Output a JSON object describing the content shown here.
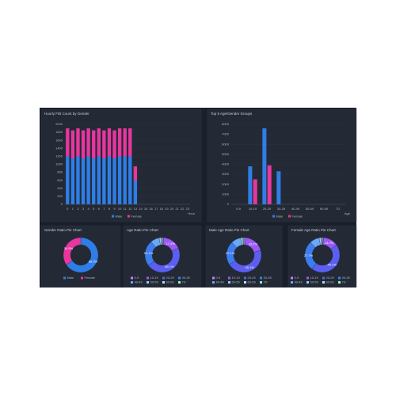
{
  "chart_data": [
    {
      "type": "bar",
      "stacked": true,
      "title": "Hourly F/B Count by Gender",
      "xlabel": "Hour",
      "categories": [
        "0",
        "1",
        "2",
        "3",
        "4",
        "5",
        "6",
        "7",
        "8",
        "9",
        "10",
        "11",
        "12",
        "13",
        "14",
        "15",
        "16",
        "17",
        "18",
        "19",
        "20",
        "21",
        "22",
        "23"
      ],
      "series": [
        {
          "name": "Male",
          "color": "#2f7ee8",
          "values": [
            1200,
            1150,
            1200,
            1150,
            1200,
            1150,
            1200,
            1150,
            1200,
            1150,
            1200,
            1200,
            1200,
            600,
            0,
            0,
            0,
            0,
            0,
            0,
            0,
            0,
            0,
            0
          ]
        },
        {
          "name": "Female",
          "color": "#e8369e",
          "values": [
            700,
            700,
            700,
            700,
            700,
            700,
            700,
            700,
            700,
            700,
            700,
            700,
            700,
            350,
            0,
            0,
            0,
            0,
            0,
            0,
            0,
            0,
            0,
            0
          ]
        }
      ],
      "ylim": [
        0,
        2000
      ],
      "yticks": [
        0,
        200,
        400,
        600,
        800,
        1000,
        1200,
        1400,
        1600,
        1800,
        2000
      ],
      "grid": true
    },
    {
      "type": "bar",
      "stacked": false,
      "title": "Top 5 Age/Gender Groups",
      "xlabel": "Age",
      "categories": [
        "0-9",
        "10-19",
        "20-29",
        "30-39",
        "40-49",
        "50-59",
        "60-69",
        "70-"
      ],
      "series": [
        {
          "name": "Male",
          "color": "#2f7ee8",
          "values": [
            null,
            3800,
            7600,
            3300,
            null,
            null,
            null,
            null
          ]
        },
        {
          "name": "Female",
          "color": "#e8369e",
          "values": [
            null,
            2500,
            3900,
            null,
            null,
            null,
            null,
            null
          ]
        }
      ],
      "ylim": [
        0,
        8000
      ],
      "yticks": [
        0,
        1000,
        2000,
        3000,
        4000,
        5000,
        6000,
        7000,
        8000
      ],
      "grid": true
    },
    {
      "type": "pie",
      "donut": true,
      "title": "Gender Ratio Pie Chart",
      "categories": [
        "Male",
        "Female"
      ],
      "values": [
        65.5,
        34.5
      ],
      "value_labels": [
        "65.5%",
        "34.5%"
      ],
      "colors": [
        "#2f7ee8",
        "#e8369e"
      ]
    },
    {
      "type": "pie",
      "donut": true,
      "title": "Age Ratio Pie Chart",
      "categories": [
        "0-9",
        "10-19",
        "20-29",
        "30-39",
        "40-49",
        "50-59",
        "60-69",
        "70-"
      ],
      "values": [
        1.2,
        17.4,
        46.1,
        24.1,
        8.2,
        2.0,
        0.7,
        0.3
      ],
      "value_labels": [
        null,
        "17.4%",
        "46.1%",
        "24.1%",
        null,
        null,
        null,
        null
      ],
      "colors": [
        "#c77dff",
        "#9b59f5",
        "#5b5ef0",
        "#3c7ef0",
        "#6aa8f8",
        "#8fd0f0",
        "#b0e8e0",
        "#7fffd4"
      ]
    },
    {
      "type": "pie",
      "donut": true,
      "title": "Male Age Ratio Pie Chart",
      "categories": [
        "0-9",
        "10-19",
        "20-29",
        "30-39",
        "40-49",
        "50-59",
        "60-69",
        "70-"
      ],
      "values": [
        1.5,
        19.2,
        45.1,
        22.1,
        9.0,
        2.1,
        0.7,
        0.3
      ],
      "value_labels": [
        null,
        "19.2%",
        "45.1%",
        "22.1%",
        null,
        null,
        null,
        null
      ],
      "colors": [
        "#c77dff",
        "#9b59f5",
        "#5b5ef0",
        "#3c7ef0",
        "#6aa8f8",
        "#8fd0f0",
        "#b0e8e0",
        "#7fffd4"
      ]
    },
    {
      "type": "pie",
      "donut": true,
      "title": "Female Age Ratio Pie Chart",
      "categories": [
        "0-9",
        "10-19",
        "20-29",
        "30-39",
        "40-49",
        "50-59",
        "60-69",
        "70-"
      ],
      "values": [
        1.0,
        14.2,
        45.1,
        27.7,
        9.0,
        2.0,
        0.7,
        0.3
      ],
      "value_labels": [
        null,
        "14.2%",
        "45.1%",
        "27.7%",
        null,
        null,
        null,
        null
      ],
      "colors": [
        "#c77dff",
        "#9b59f5",
        "#5b5ef0",
        "#3c7ef0",
        "#6aa8f8",
        "#8fd0f0",
        "#b0e8e0",
        "#7fffd4"
      ]
    }
  ]
}
